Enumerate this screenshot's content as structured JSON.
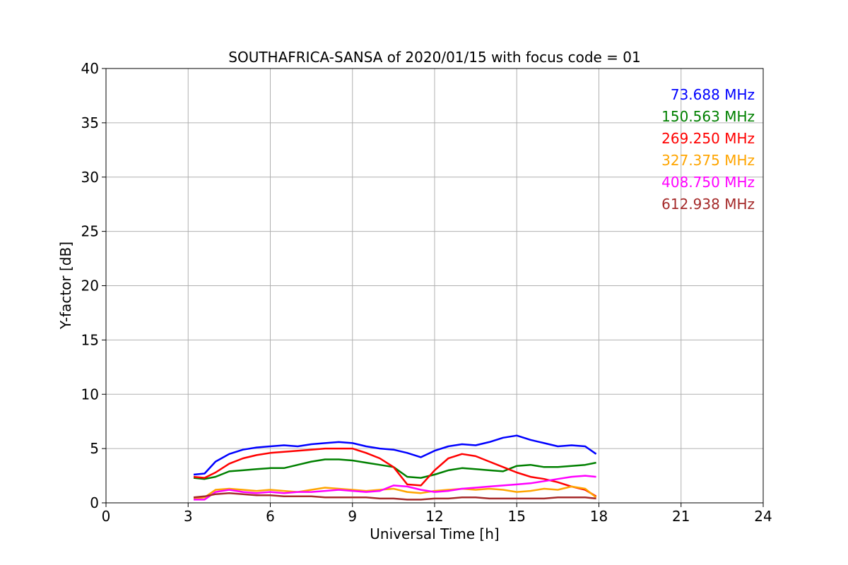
{
  "chart_data": {
    "type": "line",
    "title": "SOUTHAFRICA-SANSA of 2020/01/15 with focus code = 01",
    "xlabel": "Universal Time [h]",
    "ylabel": "Y-factor [dB]",
    "xlim": [
      0,
      24
    ],
    "ylim": [
      0,
      40
    ],
    "xticks": [
      "0",
      "3",
      "6",
      "9",
      "12",
      "15",
      "18",
      "21",
      "24"
    ],
    "yticks": [
      "0",
      "5",
      "10",
      "15",
      "20",
      "25",
      "30",
      "35",
      "40"
    ],
    "grid": true,
    "legend_position": "top-right",
    "series": [
      {
        "name": "73.688 MHz",
        "color": "#0000ff",
        "x": [
          3.2,
          3.6,
          4.0,
          4.5,
          5.0,
          5.5,
          6.0,
          6.5,
          7.0,
          7.5,
          8.0,
          8.5,
          9.0,
          9.5,
          10.0,
          10.5,
          11.0,
          11.5,
          12.0,
          12.5,
          13.0,
          13.5,
          14.0,
          14.5,
          15.0,
          15.5,
          16.0,
          16.5,
          17.0,
          17.5,
          17.9
        ],
        "y": [
          2.6,
          2.7,
          3.8,
          4.5,
          4.9,
          5.1,
          5.2,
          5.3,
          5.2,
          5.4,
          5.5,
          5.6,
          5.5,
          5.2,
          5.0,
          4.9,
          4.6,
          4.2,
          4.8,
          5.2,
          5.4,
          5.3,
          5.6,
          6.0,
          6.2,
          5.8,
          5.5,
          5.2,
          5.3,
          5.2,
          4.5
        ]
      },
      {
        "name": "150.563 MHz",
        "color": "#008000",
        "x": [
          3.2,
          3.6,
          4.0,
          4.5,
          5.0,
          5.5,
          6.0,
          6.5,
          7.0,
          7.5,
          8.0,
          8.5,
          9.0,
          9.5,
          10.0,
          10.5,
          11.0,
          11.5,
          12.0,
          12.5,
          13.0,
          13.5,
          14.0,
          14.5,
          15.0,
          15.5,
          16.0,
          16.5,
          17.0,
          17.5,
          17.9
        ],
        "y": [
          2.3,
          2.2,
          2.4,
          2.9,
          3.0,
          3.1,
          3.2,
          3.2,
          3.5,
          3.8,
          4.0,
          4.0,
          3.9,
          3.7,
          3.5,
          3.3,
          2.4,
          2.3,
          2.6,
          3.0,
          3.2,
          3.1,
          3.0,
          2.9,
          3.4,
          3.5,
          3.3,
          3.3,
          3.4,
          3.5,
          3.7
        ]
      },
      {
        "name": "269.250 MHz",
        "color": "#ff0000",
        "x": [
          3.2,
          3.6,
          4.0,
          4.5,
          5.0,
          5.5,
          6.0,
          6.5,
          7.0,
          7.5,
          8.0,
          8.5,
          9.0,
          9.5,
          10.0,
          10.5,
          11.0,
          11.5,
          12.0,
          12.5,
          13.0,
          13.5,
          14.0,
          14.5,
          15.0,
          15.5,
          16.0,
          16.5,
          17.0,
          17.5,
          17.9
        ],
        "y": [
          2.4,
          2.3,
          2.8,
          3.6,
          4.1,
          4.4,
          4.6,
          4.7,
          4.8,
          4.9,
          5.0,
          5.0,
          5.0,
          4.6,
          4.1,
          3.3,
          1.7,
          1.6,
          3.0,
          4.1,
          4.5,
          4.3,
          3.8,
          3.3,
          2.8,
          2.4,
          2.2,
          1.9,
          1.5,
          1.2,
          0.6
        ]
      },
      {
        "name": "327.375 MHz",
        "color": "#ffa500",
        "x": [
          3.2,
          3.6,
          4.0,
          4.5,
          5.0,
          5.5,
          6.0,
          6.5,
          7.0,
          7.5,
          8.0,
          8.5,
          9.0,
          9.5,
          10.0,
          10.5,
          11.0,
          11.5,
          12.0,
          12.5,
          13.0,
          13.5,
          14.0,
          14.5,
          15.0,
          15.5,
          16.0,
          16.5,
          17.0,
          17.5,
          17.9
        ],
        "y": [
          0.4,
          0.5,
          1.2,
          1.3,
          1.2,
          1.1,
          1.2,
          1.1,
          1.0,
          1.2,
          1.4,
          1.3,
          1.2,
          1.1,
          1.2,
          1.3,
          1.0,
          0.9,
          1.1,
          1.2,
          1.3,
          1.2,
          1.3,
          1.2,
          1.0,
          1.1,
          1.3,
          1.2,
          1.5,
          1.3,
          0.5
        ]
      },
      {
        "name": "408.750 MHz",
        "color": "#ff00ff",
        "x": [
          3.2,
          3.6,
          4.0,
          4.5,
          5.0,
          5.5,
          6.0,
          6.5,
          7.0,
          7.5,
          8.0,
          8.5,
          9.0,
          9.5,
          10.0,
          10.5,
          11.0,
          11.5,
          12.0,
          12.5,
          13.0,
          13.5,
          14.0,
          14.5,
          15.0,
          15.5,
          16.0,
          16.5,
          17.0,
          17.5,
          17.9
        ],
        "y": [
          0.3,
          0.3,
          1.0,
          1.2,
          1.0,
          0.9,
          1.0,
          0.9,
          1.0,
          1.0,
          1.1,
          1.2,
          1.1,
          1.0,
          1.1,
          1.6,
          1.5,
          1.2,
          1.0,
          1.1,
          1.3,
          1.4,
          1.5,
          1.6,
          1.7,
          1.8,
          2.0,
          2.2,
          2.4,
          2.5,
          2.4
        ]
      },
      {
        "name": "612.938 MHz",
        "color": "#a52a2a",
        "x": [
          3.2,
          3.6,
          4.0,
          4.5,
          5.0,
          5.5,
          6.0,
          6.5,
          7.0,
          7.5,
          8.0,
          8.5,
          9.0,
          9.5,
          10.0,
          10.5,
          11.0,
          11.5,
          12.0,
          12.5,
          13.0,
          13.5,
          14.0,
          14.5,
          15.0,
          15.5,
          16.0,
          16.5,
          17.0,
          17.5,
          17.9
        ],
        "y": [
          0.5,
          0.6,
          0.8,
          0.9,
          0.8,
          0.7,
          0.7,
          0.6,
          0.6,
          0.6,
          0.5,
          0.5,
          0.5,
          0.5,
          0.4,
          0.4,
          0.3,
          0.3,
          0.4,
          0.4,
          0.5,
          0.5,
          0.4,
          0.4,
          0.4,
          0.4,
          0.4,
          0.5,
          0.5,
          0.5,
          0.4
        ]
      }
    ]
  }
}
